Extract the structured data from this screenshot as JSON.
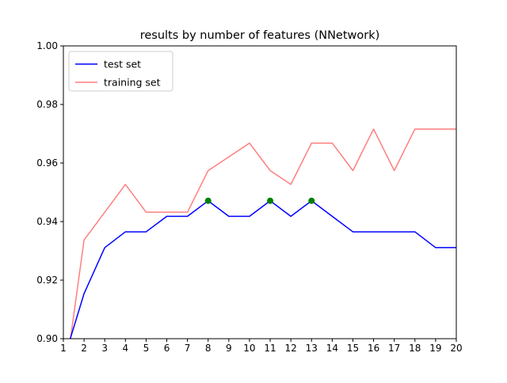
{
  "chart_data": {
    "type": "line",
    "title": "results by number of features (NNetwork)",
    "xlabel": "",
    "ylabel": "",
    "xlim": [
      1,
      20
    ],
    "ylim": [
      0.9,
      1.0
    ],
    "x_ticks": [
      1,
      2,
      3,
      4,
      5,
      6,
      7,
      8,
      9,
      10,
      11,
      12,
      13,
      14,
      15,
      16,
      17,
      18,
      19,
      20
    ],
    "y_ticks": [
      0.9,
      0.92,
      0.94,
      0.96,
      0.98,
      1.0
    ],
    "y_tick_labels": [
      "0.90",
      "0.92",
      "0.94",
      "0.96",
      "0.98",
      "1.00"
    ],
    "grid": false,
    "legend": "upper-left",
    "x": [
      1,
      2,
      3,
      4,
      5,
      6,
      7,
      8,
      9,
      10,
      11,
      12,
      13,
      14,
      15,
      16,
      17,
      18,
      19,
      20
    ],
    "series": [
      {
        "name": "test set",
        "color": "#0000ff",
        "values": [
          0.8923,
          0.9154,
          0.9311,
          0.9365,
          0.9365,
          0.9418,
          0.9418,
          0.9471,
          0.9418,
          0.9418,
          0.9471,
          0.9418,
          0.9471,
          0.9418,
          0.9365,
          0.9365,
          0.9365,
          0.9365,
          0.9311,
          0.9311
        ]
      },
      {
        "name": "training set",
        "color": "#ff7f7f",
        "values": [
          0.8823,
          0.9337,
          0.9432,
          0.9527,
          0.9432,
          0.9432,
          0.9432,
          0.9574,
          0.9621,
          0.9668,
          0.9574,
          0.9527,
          0.9668,
          0.9668,
          0.9574,
          0.9716,
          0.9574,
          0.9716,
          0.9716,
          0.9716
        ]
      }
    ],
    "highlight_points": {
      "color": "#008000",
      "x": [
        8,
        11,
        13
      ],
      "values": [
        0.9471,
        0.9471,
        0.9471
      ]
    }
  }
}
